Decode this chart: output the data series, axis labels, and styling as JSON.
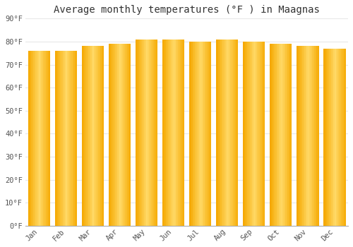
{
  "title": "Average monthly temperatures (°F ) in Maagnas",
  "months": [
    "Jan",
    "Feb",
    "Mar",
    "Apr",
    "May",
    "Jun",
    "Jul",
    "Aug",
    "Sep",
    "Oct",
    "Nov",
    "Dec"
  ],
  "values": [
    76,
    76,
    78,
    79,
    81,
    81,
    80,
    81,
    80,
    79,
    78,
    77
  ],
  "bar_color_center": "#FFD966",
  "bar_color_edge": "#F5A800",
  "ylim": [
    0,
    90
  ],
  "ytick_step": 10,
  "background_color": "#FFFFFF",
  "plot_bg_color": "#FFFFFF",
  "grid_color": "#E8E8E8",
  "title_fontsize": 10,
  "tick_fontsize": 7.5,
  "bar_width": 0.82
}
